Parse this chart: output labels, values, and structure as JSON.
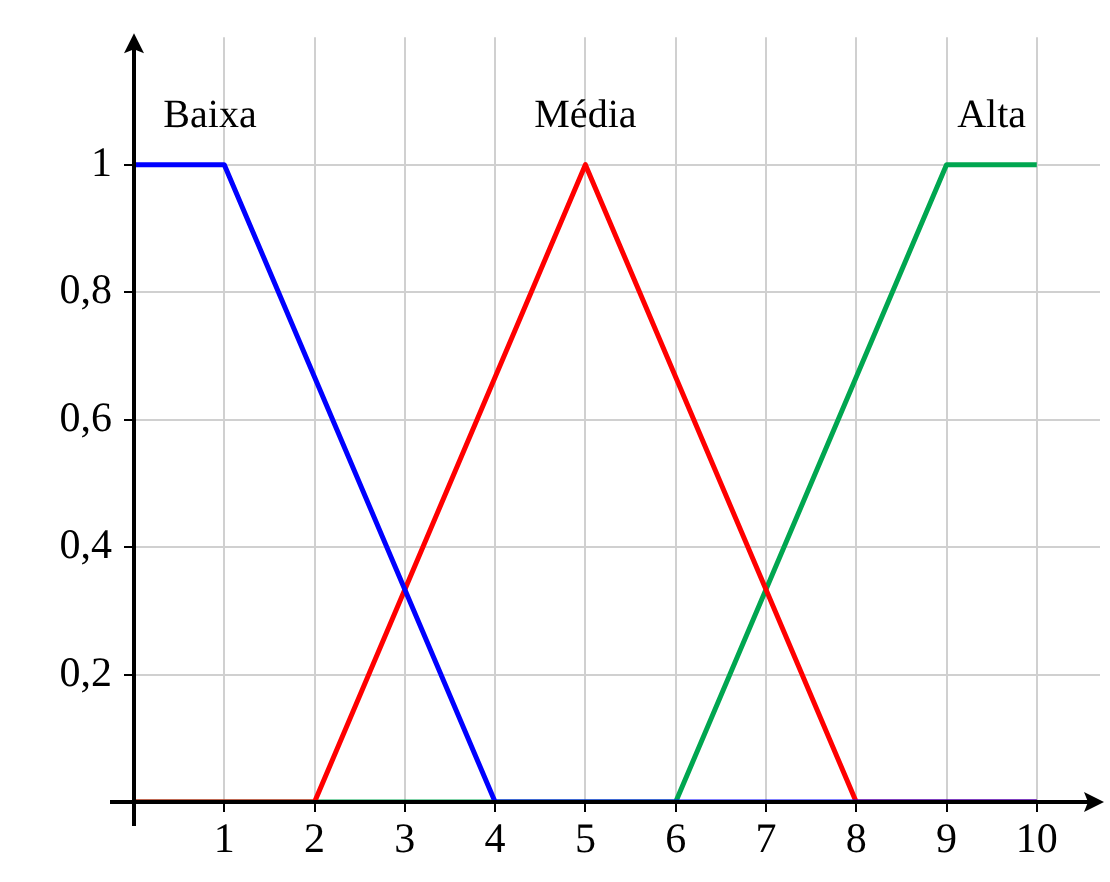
{
  "chart_data": {
    "type": "line",
    "series": [
      {
        "name": "Baixa",
        "color": "#0000ff",
        "x": [
          0,
          1,
          4,
          10
        ],
        "values": [
          1,
          1,
          0,
          0
        ]
      },
      {
        "name": "Média",
        "color": "#ff0000",
        "x": [
          0,
          2,
          5,
          8,
          10
        ],
        "values": [
          0,
          0,
          1,
          0,
          0
        ]
      },
      {
        "name": "Alta",
        "color": "#00a650",
        "x": [
          0,
          6,
          9,
          10
        ],
        "values": [
          0,
          0,
          1,
          1
        ]
      }
    ],
    "xlim": [
      0,
      10.7
    ],
    "xticks": [
      1,
      2,
      3,
      4,
      5,
      6,
      7,
      8,
      9,
      10
    ],
    "ylim": [
      0,
      1.2
    ],
    "yticks": [
      {
        "value": 0.2,
        "label": "0,2"
      },
      {
        "value": 0.4,
        "label": "0,4"
      },
      {
        "value": 0.6,
        "label": "0,6"
      },
      {
        "value": 0.8,
        "label": "0,8"
      },
      1
    ],
    "grid": true,
    "legend": false,
    "marker": "none",
    "line_style": "solid"
  }
}
